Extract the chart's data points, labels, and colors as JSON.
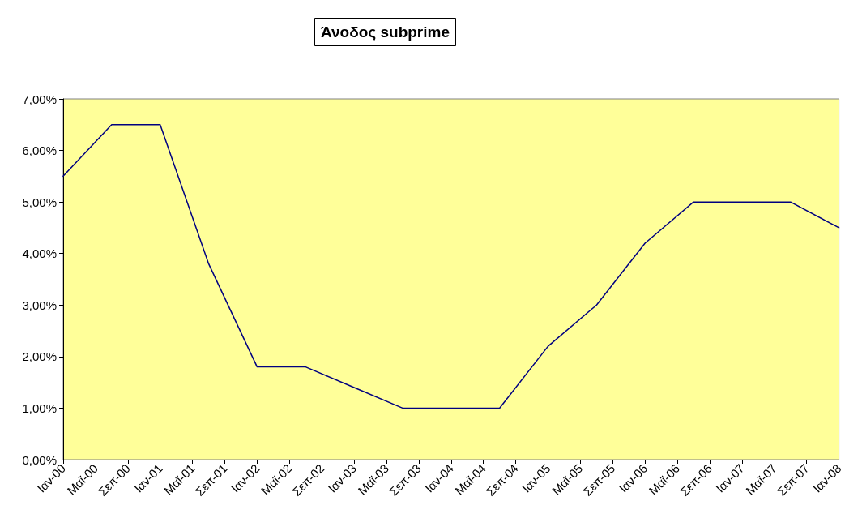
{
  "chart_data": {
    "type": "line",
    "title": "Άνοδος subprime",
    "x": [
      "2000-01",
      "2000-07",
      "2001-01",
      "2001-07",
      "2002-01",
      "2002-07",
      "2003-01",
      "2003-07",
      "2004-01",
      "2004-07",
      "2005-01",
      "2005-07",
      "2006-01",
      "2006-07",
      "2007-01",
      "2007-07",
      "2008-01"
    ],
    "series": [
      {
        "color": "#000080",
        "values": [
          5.5,
          6.5,
          6.5,
          3.8,
          1.8,
          1.8,
          1.4,
          1.0,
          1.0,
          1.0,
          2.2,
          3.0,
          4.2,
          5.0,
          5.0,
          5.0,
          4.5
        ]
      }
    ],
    "xlim": [
      "2000-01",
      "2008-01"
    ],
    "xticks": [
      {
        "value": "2000-01",
        "label": "Ιαν-00"
      },
      {
        "value": "2000-05",
        "label": "Μαϊ-00"
      },
      {
        "value": "2000-09",
        "label": "Σεπ-00"
      },
      {
        "value": "2001-01",
        "label": "Ιαν-01"
      },
      {
        "value": "2001-05",
        "label": "Μαϊ-01"
      },
      {
        "value": "2001-09",
        "label": "Σεπ-01"
      },
      {
        "value": "2002-01",
        "label": "Ιαν-02"
      },
      {
        "value": "2002-05",
        "label": "Μαϊ-02"
      },
      {
        "value": "2002-09",
        "label": "Σεπ-02"
      },
      {
        "value": "2003-01",
        "label": "Ιαν-03"
      },
      {
        "value": "2003-05",
        "label": "Μαϊ-03"
      },
      {
        "value": "2003-09",
        "label": "Σεπ-03"
      },
      {
        "value": "2004-01",
        "label": "Ιαν-04"
      },
      {
        "value": "2004-05",
        "label": "Μαϊ-04"
      },
      {
        "value": "2004-09",
        "label": "Σεπ-04"
      },
      {
        "value": "2005-01",
        "label": "Ιαν-05"
      },
      {
        "value": "2005-05",
        "label": "Μαϊ-05"
      },
      {
        "value": "2005-09",
        "label": "Σεπ-05"
      },
      {
        "value": "2006-01",
        "label": "Ιαν-06"
      },
      {
        "value": "2006-05",
        "label": "Μαϊ-06"
      },
      {
        "value": "2006-09",
        "label": "Σεπ-06"
      },
      {
        "value": "2007-01",
        "label": "Ιαν-07"
      },
      {
        "value": "2007-05",
        "label": "Μαϊ-07"
      },
      {
        "value": "2007-09",
        "label": "Σεπ-07"
      },
      {
        "value": "2008-01",
        "label": "Ιαν-08"
      }
    ],
    "ylim": [
      0,
      7
    ],
    "yticks": [
      {
        "value": 0,
        "label": "0,00%"
      },
      {
        "value": 1,
        "label": "1,00%"
      },
      {
        "value": 2,
        "label": "2,00%"
      },
      {
        "value": 3,
        "label": "3,00%"
      },
      {
        "value": 4,
        "label": "4,00%"
      },
      {
        "value": 5,
        "label": "5,00%"
      },
      {
        "value": 6,
        "label": "6,00%"
      },
      {
        "value": 7,
        "label": "7,00%"
      }
    ],
    "grid": false,
    "marker": "none",
    "line_style": "solid"
  }
}
